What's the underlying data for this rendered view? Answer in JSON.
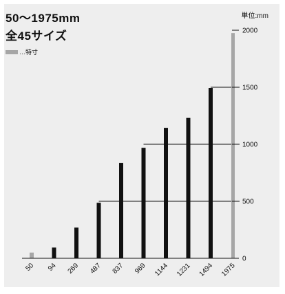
{
  "header": {
    "title": "50〜1975mm",
    "subtitle": "全45サイズ",
    "unit_label": "単位:mm",
    "legend_label": "…特寸"
  },
  "colors": {
    "standard": "#111111",
    "special": "#a6a6a6",
    "background": "#eeeeee"
  },
  "chart_data": {
    "type": "bar",
    "categories": [
      "50",
      "94",
      "269",
      "487",
      "837",
      "969",
      "1144",
      "1231",
      "1494",
      "1975"
    ],
    "series": [
      {
        "values": [
          50,
          94,
          269,
          487,
          837,
          969,
          1144,
          1231,
          1494,
          1975
        ]
      }
    ],
    "special": [
      true,
      false,
      false,
      false,
      false,
      false,
      false,
      false,
      false,
      true
    ],
    "legend": [
      {
        "label": "…特寸",
        "color": "#a6a6a6"
      }
    ],
    "y_ticks": [
      0,
      500,
      1000,
      1500,
      2000
    ],
    "ylim": [
      0,
      2000
    ],
    "y_axis_side": "right",
    "x_tick_rotation": -45,
    "reference_lines": [
      {
        "value": 500,
        "from": "487"
      },
      {
        "value": 1000,
        "from": "969"
      },
      {
        "value": 1500,
        "from": "1494"
      }
    ]
  }
}
